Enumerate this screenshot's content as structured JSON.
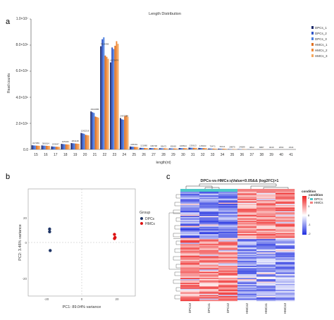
{
  "panel_labels": {
    "a": "a",
    "b": "b",
    "c": "c"
  },
  "chart_data": [
    {
      "type": "bar",
      "title": "Length Distribution",
      "xlabel": "length(nt)",
      "ylabel": "Read counts",
      "ylim": [
        0,
        10000000
      ],
      "yticks": [
        "0.0",
        "2.0×10⁶",
        "4.0×10⁶",
        "6.0×10⁶",
        "8.0×10⁶",
        "1.0×10⁷"
      ],
      "grid": false,
      "legend_position": "right",
      "categories": [
        "15",
        "16",
        "17",
        "18",
        "19",
        "20",
        "21",
        "22",
        "23",
        "24",
        "25",
        "26",
        "27",
        "28",
        "29",
        "30",
        "31",
        "32",
        "33",
        "34",
        "35",
        "36",
        "37",
        "38",
        "39",
        "40",
        "41"
      ],
      "series": [
        {
          "name": "DPCs_1",
          "color": "#1f2a6b",
          "values": [
            317956,
            306014,
            233547,
            425182,
            484148,
            1262216,
            2913086,
            7914498,
            6673474,
            2407306,
            225091,
            121880,
            106748,
            93672,
            83063,
            108814,
            135613,
            115003,
            70471,
            60111,
            28875,
            24689,
            9822,
            8887,
            4049,
            2664,
            2344
          ]
        },
        {
          "name": "DPCs_2",
          "color": "#2f55c8",
          "values": [
            305000,
            292000,
            222000,
            410000,
            470000,
            1230000,
            2850000,
            8450000,
            7820000,
            2310000,
            215000,
            117000,
            102000,
            90000,
            80000,
            104000,
            130000,
            110000,
            68000,
            58000,
            27000,
            23500,
            9400,
            8500,
            3900,
            2550,
            2250
          ]
        },
        {
          "name": "DPCs_3",
          "color": "#4a7ee0",
          "values": [
            298000,
            286000,
            218000,
            402000,
            460000,
            1200000,
            2800000,
            8600000,
            7700000,
            2280000,
            210000,
            114000,
            100000,
            88000,
            78000,
            102000,
            127000,
            108000,
            66000,
            56000,
            26500,
            23000,
            9200,
            8300,
            3800,
            2500,
            2200
          ]
        },
        {
          "name": "HMCs_1",
          "color": "#e07020",
          "values": [
            290000,
            278000,
            210000,
            390000,
            450000,
            1120000,
            2520000,
            7200000,
            7950000,
            2550000,
            200000,
            110000,
            96000,
            85000,
            76000,
            99000,
            123000,
            104000,
            64000,
            55000,
            26000,
            22500,
            9000,
            8100,
            3700,
            2450,
            2150
          ]
        },
        {
          "name": "HMCs_2",
          "color": "#f08a3a",
          "values": [
            283000,
            271000,
            205000,
            382000,
            440000,
            1100000,
            2480000,
            7100000,
            8300000,
            2620000,
            196000,
            107000,
            94000,
            83000,
            74000,
            97000,
            120000,
            102000,
            62000,
            54000,
            25500,
            22000,
            8800,
            7900,
            3600,
            2400,
            2100
          ]
        },
        {
          "name": "HMCs_3",
          "color": "#f4a860",
          "values": [
            276000,
            265000,
            200000,
            375000,
            432000,
            1080000,
            2440000,
            6950000,
            8100000,
            2500000,
            192000,
            105000,
            92000,
            81000,
            72000,
            95000,
            117000,
            100000,
            61000,
            53000,
            25000,
            21500,
            8600,
            7700,
            3500,
            2350,
            2050
          ]
        }
      ],
      "data_labels": [
        "317956",
        "306014",
        "233547",
        "425182",
        "484148",
        "1262216",
        "2913086",
        "7914498",
        "6673474",
        "2407306",
        "225091",
        "121880",
        "106748",
        "93672",
        "83063",
        "108814",
        "135613",
        "115003",
        "70471",
        "60111",
        "28875",
        "24689",
        "9822",
        "8887",
        "4049",
        "2664",
        "2344"
      ]
    },
    {
      "type": "scatter",
      "xlabel": "PC1: 89.04% variance",
      "ylabel": "PC2: 3.46% variance",
      "xlim": [
        -45,
        45
      ],
      "ylim": [
        -30,
        30
      ],
      "xticks": [
        "-20",
        "0",
        "20"
      ],
      "yticks": [
        "20",
        "0",
        "-20"
      ],
      "legend_title": "Group",
      "series": [
        {
          "name": "DPCs",
          "color": "#1f3566",
          "points": [
            [
              -27,
              7.5
            ],
            [
              -27,
              6
            ],
            [
              -26.5,
              -4.5
            ]
          ]
        },
        {
          "name": "HMCs",
          "color": "#dd1111",
          "points": [
            [
              27.5,
              4.5
            ],
            [
              28,
              2.8
            ],
            [
              27.5,
              2.2
            ]
          ]
        }
      ]
    },
    {
      "type": "heatmap",
      "title": "DPCs-vs-HMCs:qValue<0.05&& |log2FC|>1",
      "columns": [
        "DPCs3",
        "DPCs1",
        "DPCs2",
        "HMCs2",
        "HMCs1",
        "HMCs3"
      ],
      "condition_title": "condition",
      "condition_levels": [
        "DPCs",
        "HMCs"
      ],
      "condition_colors": {
        "DPCs": "#4cc8c8",
        "HMCs": "#f28080"
      },
      "scale_ticks": [
        "2",
        "1",
        "0",
        "-1",
        "-2"
      ],
      "color_low": "#1f2ee0",
      "color_mid": "#ffffff",
      "color_high": "#ee2222"
    }
  ]
}
